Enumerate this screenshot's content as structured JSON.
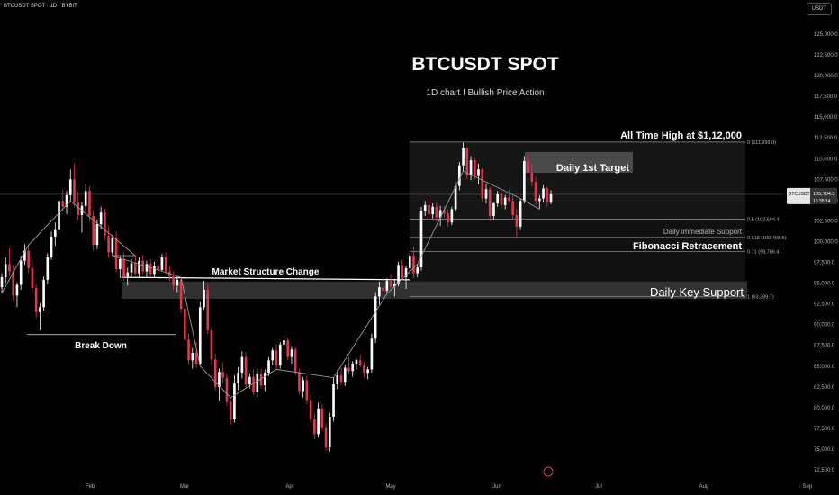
{
  "header": {
    "symbol_line": "BTCUSDT SPOT · 1D · BYBIT",
    "currency": "USDT"
  },
  "chart_data": {
    "type": "candlestick",
    "title": "BTCUSDT SPOT",
    "subtitle": "1D chart    I  Bullish Price Action",
    "y_ticks": [
      "125,000.0",
      "122,500.0",
      "120,000.0",
      "117,500.0",
      "115,000.0",
      "112,500.0",
      "110,000.0",
      "107,500.0",
      "105,000.0",
      "102,500.0",
      "100,000.0",
      "97,500.0",
      "95,000.0",
      "92,500.0",
      "90,000.0",
      "87,500.0",
      "85,000.0",
      "82,500.0",
      "80,000.0",
      "77,500.0",
      "75,000.0",
      "72,500.0"
    ],
    "x_ticks": [
      "Feb",
      "Mar",
      "Apr",
      "May",
      "Jun",
      "Jul",
      "Aug",
      "Sep"
    ],
    "ylim": [
      72000,
      127000
    ],
    "price_label": {
      "symbol": "BTCUSDT",
      "price": "105,704.3",
      "time": "16:35:14",
      "value": 105704
    },
    "fib_levels": [
      {
        "label": "0 (111,999.0)",
        "value": 111999
      },
      {
        "label": "0.5 (102,694.4)",
        "value": 102694
      },
      {
        "label": "0.618 (100,498.5)",
        "value": 100498
      },
      {
        "label": "0.71 (98,786.4)",
        "value": 98786
      },
      {
        "label": "1 (93,389.7)",
        "value": 93389
      }
    ],
    "annotations": {
      "ath": "All Time High at $1,12,000",
      "target": "Daily 1st Target",
      "immediate_support": "Daily immediate Support",
      "fib": "Fibonacci Retracement",
      "key_support": "Daily Key Support",
      "msc": "Market Structure Change",
      "breakdown": "Break Down"
    },
    "candles": [
      [
        94500,
        96200,
        93800,
        95700
      ],
      [
        95700,
        98100,
        95000,
        97300
      ],
      [
        97300,
        99200,
        95900,
        96400
      ],
      [
        96400,
        97200,
        92900,
        93500
      ],
      [
        93500,
        95100,
        92100,
        94800
      ],
      [
        94800,
        98300,
        94200,
        97700
      ],
      [
        97700,
        99700,
        97200,
        98900
      ],
      [
        98900,
        99600,
        96200,
        96800
      ],
      [
        96800,
        97900,
        93900,
        94400
      ],
      [
        94400,
        94900,
        90800,
        91500
      ],
      [
        91500,
        92600,
        89300,
        92100
      ],
      [
        92100,
        95800,
        91700,
        95400
      ],
      [
        95400,
        98600,
        94900,
        98100
      ],
      [
        98100,
        101200,
        97800,
        100600
      ],
      [
        100600,
        102300,
        99500,
        101400
      ],
      [
        101400,
        105600,
        101000,
        104900
      ],
      [
        104900,
        106300,
        103600,
        104200
      ],
      [
        104200,
        106100,
        103300,
        105600
      ],
      [
        105600,
        108700,
        104900,
        107500
      ],
      [
        107500,
        109400,
        104200,
        104800
      ],
      [
        104800,
        106000,
        102600,
        103200
      ],
      [
        103200,
        104800,
        101100,
        104300
      ],
      [
        104300,
        106900,
        103700,
        106100
      ],
      [
        106100,
        106700,
        102400,
        103100
      ],
      [
        103100,
        103800,
        98900,
        99600
      ],
      [
        99600,
        102700,
        99100,
        102100
      ],
      [
        102100,
        104200,
        101500,
        103500
      ],
      [
        103500,
        104000,
        100200,
        100700
      ],
      [
        100700,
        101900,
        98100,
        98700
      ],
      [
        98700,
        100800,
        98300,
        100500
      ],
      [
        100500,
        101200,
        96300,
        96700
      ],
      [
        96700,
        98200,
        95600,
        97900
      ],
      [
        97900,
        98600,
        95300,
        95800
      ],
      [
        95800,
        96900,
        94700,
        96300
      ],
      [
        96300,
        97900,
        95800,
        97400
      ],
      [
        97400,
        98300,
        95900,
        96200
      ],
      [
        96200,
        98100,
        95700,
        97700
      ],
      [
        97700,
        98400,
        96000,
        96400
      ],
      [
        96400,
        97700,
        95600,
        97300
      ],
      [
        97300,
        97900,
        95700,
        96100
      ],
      [
        96100,
        97600,
        95700,
        97100
      ],
      [
        97100,
        97800,
        96200,
        96600
      ],
      [
        96600,
        98500,
        96400,
        98100
      ],
      [
        98100,
        98700,
        96100,
        96400
      ],
      [
        96400,
        97000,
        95300,
        95800
      ],
      [
        95800,
        96400,
        94200,
        94700
      ],
      [
        94700,
        95800,
        93900,
        95400
      ],
      [
        95400,
        95700,
        91400,
        91900
      ],
      [
        91900,
        92300,
        87800,
        88200
      ],
      [
        88200,
        88900,
        85200,
        85700
      ],
      [
        85700,
        87200,
        84700,
        86600
      ],
      [
        86600,
        87900,
        84800,
        85300
      ],
      [
        85300,
        92800,
        85000,
        92100
      ],
      [
        92100,
        95300,
        91800,
        94200
      ],
      [
        94200,
        94900,
        88900,
        89300
      ],
      [
        89300,
        89700,
        85200,
        85800
      ],
      [
        85800,
        86500,
        82100,
        82500
      ],
      [
        82500,
        84700,
        80800,
        84300
      ],
      [
        84300,
        85400,
        82900,
        83600
      ],
      [
        83600,
        84100,
        80200,
        80700
      ],
      [
        80700,
        81200,
        77900,
        78600
      ],
      [
        78600,
        83900,
        78200,
        82900
      ],
      [
        82900,
        84900,
        82100,
        84200
      ],
      [
        84200,
        86800,
        83500,
        86100
      ],
      [
        86100,
        86700,
        82400,
        82800
      ],
      [
        82800,
        84100,
        82300,
        83700
      ],
      [
        83700,
        84600,
        81500,
        81900
      ],
      [
        81900,
        84700,
        81300,
        84100
      ],
      [
        84100,
        84600,
        82300,
        82700
      ],
      [
        82700,
        84600,
        82000,
        84200
      ],
      [
        84200,
        86100,
        83800,
        85700
      ],
      [
        85700,
        87200,
        85100,
        86900
      ],
      [
        86900,
        87600,
        84600,
        85100
      ],
      [
        85100,
        87900,
        84700,
        87600
      ],
      [
        87600,
        88700,
        86900,
        88100
      ],
      [
        88100,
        88400,
        85700,
        86100
      ],
      [
        86100,
        87400,
        85300,
        87000
      ],
      [
        87000,
        87300,
        83900,
        84300
      ],
      [
        84300,
        84700,
        81600,
        82000
      ],
      [
        82000,
        83700,
        81200,
        83300
      ],
      [
        83300,
        83900,
        80400,
        80900
      ],
      [
        80900,
        81500,
        78200,
        78600
      ],
      [
        78600,
        79300,
        76200,
        76800
      ],
      [
        76800,
        80600,
        76400,
        79900
      ],
      [
        79900,
        80400,
        77200,
        77600
      ],
      [
        77600,
        78100,
        74800,
        75200
      ],
      [
        75200,
        79400,
        74700,
        78900
      ],
      [
        78900,
        83600,
        78300,
        82800
      ],
      [
        82800,
        84500,
        82200,
        83900
      ],
      [
        83900,
        84800,
        82700,
        83100
      ],
      [
        83100,
        85200,
        82600,
        84800
      ],
      [
        84800,
        86100,
        84100,
        84400
      ],
      [
        84400,
        85600,
        83700,
        85300
      ],
      [
        85300,
        85900,
        84600,
        85700
      ],
      [
        85700,
        86400,
        84900,
        85100
      ],
      [
        85100,
        85500,
        83600,
        84200
      ],
      [
        84200,
        84900,
        83400,
        84600
      ],
      [
        84600,
        88900,
        84200,
        88300
      ],
      [
        88300,
        93900,
        87800,
        93400
      ],
      [
        93400,
        95200,
        92400,
        94500
      ],
      [
        94500,
        95700,
        93600,
        94100
      ],
      [
        94100,
        95600,
        93700,
        95300
      ],
      [
        95300,
        96100,
        94200,
        94600
      ],
      [
        94600,
        95400,
        93400,
        94900
      ],
      [
        94900,
        97600,
        94600,
        97200
      ],
      [
        97200,
        97800,
        95300,
        95700
      ],
      [
        95700,
        97100,
        94300,
        96800
      ],
      [
        96800,
        98700,
        96100,
        98300
      ],
      [
        98300,
        99400,
        95600,
        96200
      ],
      [
        96200,
        97300,
        95700,
        96900
      ],
      [
        96900,
        104200,
        96500,
        103700
      ],
      [
        103700,
        104900,
        103100,
        104400
      ],
      [
        104400,
        105100,
        102700,
        103300
      ],
      [
        103300,
        104600,
        102800,
        104200
      ],
      [
        104200,
        104700,
        102400,
        102900
      ],
      [
        102900,
        104300,
        101900,
        103800
      ],
      [
        103800,
        104300,
        102900,
        103400
      ],
      [
        103400,
        103900,
        101800,
        102300
      ],
      [
        102300,
        104200,
        102000,
        103900
      ],
      [
        103900,
        107100,
        103600,
        106700
      ],
      [
        106700,
        109600,
        106200,
        109200
      ],
      [
        109200,
        111900,
        108500,
        111300
      ],
      [
        111300,
        111400,
        107600,
        108000
      ],
      [
        108000,
        110300,
        107400,
        109800
      ],
      [
        109800,
        110100,
        107500,
        107900
      ],
      [
        107900,
        109400,
        106900,
        108700
      ],
      [
        108700,
        108900,
        104800,
        105200
      ],
      [
        105200,
        106900,
        104600,
        106300
      ],
      [
        106300,
        106600,
        102500,
        103100
      ],
      [
        103100,
        104800,
        102700,
        104600
      ],
      [
        104600,
        106100,
        104200,
        105700
      ],
      [
        105700,
        105900,
        104000,
        104400
      ],
      [
        104400,
        105600,
        103900,
        105300
      ],
      [
        105300,
        106200,
        104700,
        104900
      ],
      [
        104900,
        105500,
        102700,
        103200
      ],
      [
        103200,
        104000,
        100400,
        101800
      ],
      [
        101800,
        105200,
        101400,
        104900
      ],
      [
        104900,
        110300,
        104600,
        109700
      ],
      [
        109700,
        110600,
        108000,
        108300
      ],
      [
        108300,
        109400,
        106700,
        107200
      ],
      [
        107200,
        107800,
        104400,
        104900
      ],
      [
        104900,
        105600,
        103900,
        105200
      ],
      [
        105200,
        106800,
        104800,
        106400
      ],
      [
        106400,
        106600,
        104200,
        104800
      ],
      [
        104800,
        106200,
        104500,
        105700
      ]
    ]
  }
}
